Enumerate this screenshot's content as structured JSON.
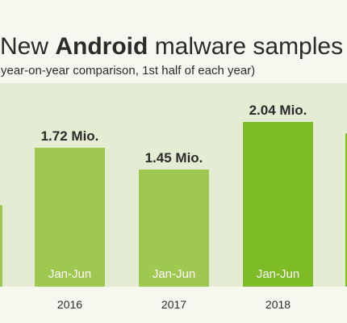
{
  "header": {
    "title_prefix": "New",
    "title_brand": "Android",
    "title_suffix": "malware samples",
    "subtitle": "year-on-year comparison, 1st half of each year)"
  },
  "colors": {
    "background": "#e4ecd3",
    "band": "#f6f8f0",
    "bar": "#9ec84f",
    "bar_highlight": "#7dbb27",
    "text": "#2b2b2b",
    "bar_text": "#ffffff"
  },
  "chart_data": {
    "type": "bar",
    "title": "New Android malware samples",
    "subtitle": "year-on-year comparison, 1st half of each year)",
    "categories": [
      "2016",
      "2017",
      "2018"
    ],
    "period_label": "Jan-Jun",
    "values": [
      1.72,
      1.45,
      2.04
    ],
    "value_labels": [
      "1.72 Mio.",
      "1.45 Mio.",
      "2.04 Mio."
    ],
    "highlight_index": 2,
    "ylim": [
      0,
      2.2
    ],
    "grid": false,
    "legend": "none"
  }
}
